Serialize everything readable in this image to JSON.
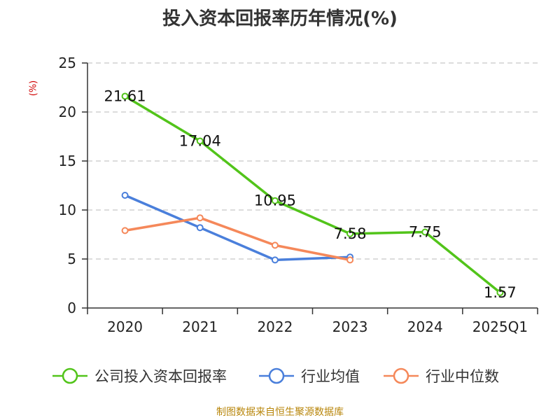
{
  "chart_data": {
    "type": "line",
    "title": "投入资本回报率历年情况(%)",
    "ylabel": "(%)",
    "xlabel": "",
    "categories": [
      "2020",
      "2021",
      "2022",
      "2023",
      "2024",
      "2025Q1"
    ],
    "ylim": [
      0,
      25
    ],
    "yticks": [
      0,
      5,
      10,
      15,
      20,
      25
    ],
    "grid": true,
    "legend_position": "bottom",
    "series": [
      {
        "name": "公司投入资本回报率",
        "color": "#52c41a",
        "values": [
          21.61,
          17.04,
          10.95,
          7.58,
          7.75,
          1.57
        ],
        "labels": [
          "21.61",
          "17.04",
          "10.95",
          "7.58",
          "7.75",
          "1.57"
        ]
      },
      {
        "name": "行业均值",
        "color": "#4a7fdb",
        "values": [
          11.5,
          8.2,
          4.9,
          5.2,
          null,
          null
        ]
      },
      {
        "name": "行业中位数",
        "color": "#f5885a",
        "values": [
          7.9,
          9.2,
          6.4,
          4.9,
          null,
          null
        ]
      }
    ],
    "source": "制图数据来自恒生聚源数据库"
  }
}
